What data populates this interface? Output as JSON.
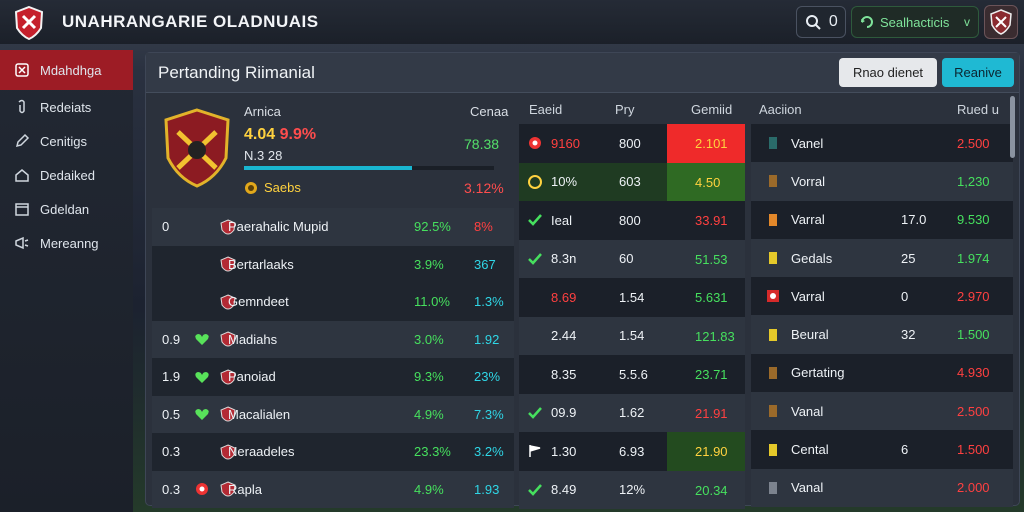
{
  "app_title": "UNAHRANGARIE OLADNUAIS",
  "top": {
    "search_count": "0",
    "status_label": "Sealhacticis",
    "status_chevron": "v"
  },
  "sidebar": {
    "items": [
      {
        "label": "Mdahdhga",
        "icon": "shield-icon",
        "active": true
      },
      {
        "label": "Redeiats",
        "icon": "clip-icon"
      },
      {
        "label": "Cenitigs",
        "icon": "pencil-icon"
      },
      {
        "label": "Dedaiked",
        "icon": "house-icon"
      },
      {
        "label": "Gdeldan",
        "icon": "calendar-icon"
      },
      {
        "label": "Mereanng",
        "icon": "megaphone-icon"
      }
    ]
  },
  "panel": {
    "title": "Pertanding Riimanial",
    "secondary_button": "Rnao dienet",
    "primary_button": "Reanive"
  },
  "left": {
    "headers": [
      "Arnica",
      "Cenaa"
    ],
    "hero": {
      "name": "Arnica",
      "pct_label": "Cenaa",
      "score_a": "4.04",
      "score_b": "9.9%",
      "stat": "78.38",
      "sub": "N.3 28",
      "tag": "Saebs",
      "neg": "3.12%"
    },
    "rows": [
      {
        "n": "0",
        "icon": "",
        "name": "Paerahalic Mupid",
        "v1": "92.5%",
        "v2": "8%",
        "v2c": "r",
        "style": "light"
      },
      {
        "n": "",
        "icon": "",
        "name": "Bertarlaaks",
        "v1": "3.9%",
        "v2": "367",
        "v2c": "c",
        "style": "dark"
      },
      {
        "n": "",
        "icon": "",
        "name": "Gemndeet",
        "v1": "11.0%",
        "v2": "1.3%",
        "v2c": "c",
        "style": "dark"
      },
      {
        "n": "0.9",
        "icon": "heart",
        "name": "Madiahs",
        "v1": "3.0%",
        "v2": "1.92",
        "v2c": "c",
        "style": "light"
      },
      {
        "n": "1.9",
        "icon": "heart",
        "name": "Panoiad",
        "v1": "9.3%",
        "v2": "23%",
        "v2c": "c",
        "style": "dark"
      },
      {
        "n": "0.5",
        "icon": "heart",
        "name": "Macalialen",
        "v1": "4.9%",
        "v2": "7.3%",
        "v2c": "c",
        "style": "light"
      },
      {
        "n": "0.3",
        "icon": "",
        "name": "Neraadeles",
        "v1": "23.3%",
        "v2": "3.2%",
        "v2c": "c",
        "style": "dark"
      },
      {
        "n": "0.3",
        "icon": "ball",
        "name": "Rapla",
        "v1": "4.9%",
        "v2": "1.93",
        "v2c": "c",
        "style": "light"
      }
    ]
  },
  "mid": {
    "headers": [
      "Eaeid",
      "Pry",
      "Gemiid"
    ],
    "rows": [
      {
        "a": "9160",
        "ac": "r",
        "b": "800",
        "c": "2.101",
        "cstyle": "heat-red",
        "cc": "y",
        "icon": "ball",
        "rowbg": "dark"
      },
      {
        "a": "10%",
        "ac": "w",
        "b": "603",
        "c": "4.50",
        "cstyle": "heat-green",
        "cc": "y",
        "icon": "circle",
        "rowbg": "green"
      },
      {
        "a": "Ieal",
        "ac": "w",
        "b": "800",
        "c": "33.91",
        "cstyle": "",
        "cc": "r",
        "icon": "check",
        "rowbg": "dark"
      },
      {
        "a": "8.3n",
        "ac": "w",
        "b": "60",
        "c": "51.53",
        "cstyle": "",
        "cc": "g",
        "icon": "check",
        "rowbg": "light"
      },
      {
        "a": "8.69",
        "ac": "r",
        "b": "1.54",
        "c": "5.631",
        "cstyle": "",
        "cc": "g",
        "icon": "",
        "rowbg": "dark"
      },
      {
        "a": "2.44",
        "ac": "w",
        "b": "1.54",
        "c": "121.83",
        "cstyle": "",
        "cc": "g",
        "icon": "",
        "rowbg": "light"
      },
      {
        "a": "8.35",
        "ac": "w",
        "b": "5.5.6",
        "c": "23.71",
        "cstyle": "",
        "cc": "g",
        "icon": "",
        "rowbg": "dark"
      },
      {
        "a": "09.9",
        "ac": "w",
        "b": "1.62",
        "c": "21.91",
        "cstyle": "",
        "cc": "r",
        "icon": "check",
        "rowbg": "light"
      },
      {
        "a": "1.30",
        "ac": "w",
        "b": "6.93",
        "c": "21.90",
        "cstyle": "heat-dkgreen",
        "cc": "y",
        "icon": "flag",
        "rowbg": "dark"
      },
      {
        "a": "8.49",
        "ac": "w",
        "b": "12%",
        "c": "20.34",
        "cstyle": "",
        "cc": "g",
        "icon": "check",
        "rowbg": "light"
      }
    ]
  },
  "right": {
    "headers": [
      "Aaciion",
      "Rued u"
    ],
    "rows": [
      {
        "icon": "teal",
        "name": "Vanel",
        "mid": "",
        "val": "2.500",
        "vc": "r",
        "rowbg": "dark"
      },
      {
        "icon": "brown",
        "name": "Vorral",
        "mid": "",
        "val": "1,230",
        "vc": "g",
        "rowbg": "light"
      },
      {
        "icon": "orange",
        "name": "Varral",
        "mid": "17.0",
        "val": "9.530",
        "vc": "g",
        "rowbg": "dark"
      },
      {
        "icon": "yellow",
        "name": "Gedals",
        "mid": "25",
        "val": "1.974",
        "vc": "g",
        "rowbg": "light"
      },
      {
        "icon": "red",
        "name": "Varral",
        "mid": "0",
        "val": "2.970",
        "vc": "r",
        "rowbg": "dark"
      },
      {
        "icon": "yellow",
        "name": "Beural",
        "mid": "32",
        "val": "1.500",
        "vc": "g",
        "rowbg": "light"
      },
      {
        "icon": "brown",
        "name": "Gertating",
        "mid": "",
        "val": "4.930",
        "vc": "r",
        "rowbg": "dark"
      },
      {
        "icon": "brown",
        "name": "Vanal",
        "mid": "",
        "val": "2.500",
        "vc": "r",
        "rowbg": "light"
      },
      {
        "icon": "yellow",
        "name": "Cental",
        "mid": "6",
        "val": "1.500",
        "vc": "r",
        "rowbg": "dark"
      },
      {
        "icon": "gray",
        "name": "Vanal",
        "mid": "",
        "val": "2.000",
        "vc": "r",
        "rowbg": "light"
      }
    ]
  },
  "colors": {
    "accent": "#1fb9d3",
    "danger": "#ef2a2a",
    "positive": "#46e05e",
    "active_nav": "#9d1c25"
  }
}
